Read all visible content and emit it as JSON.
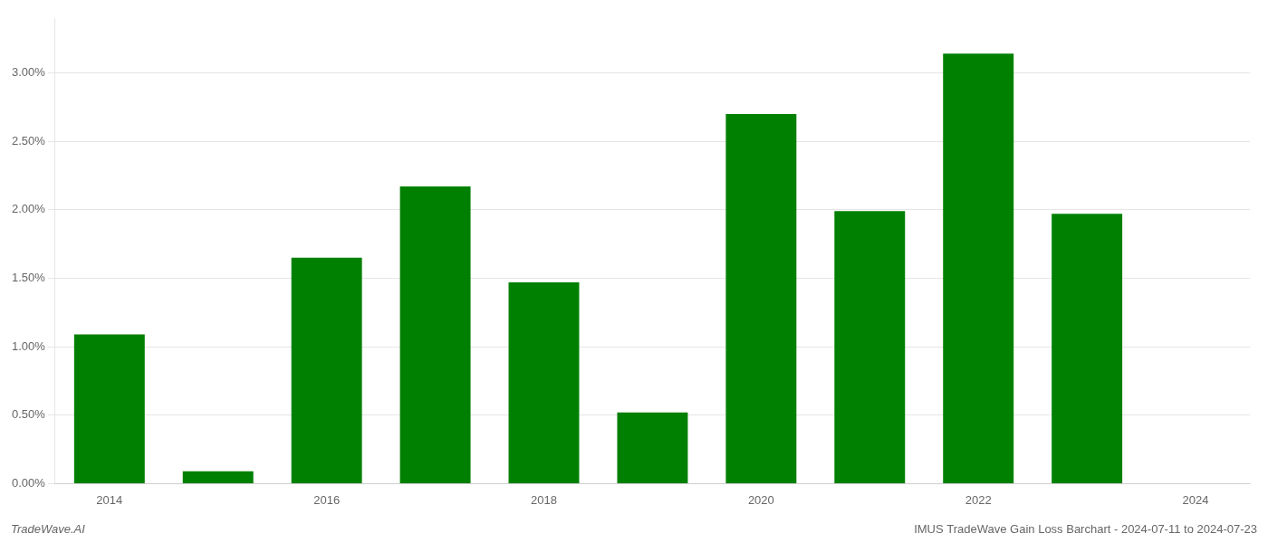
{
  "chart_data": {
    "type": "bar",
    "categories": [
      "2014",
      null,
      "2016",
      null,
      "2018",
      null,
      "2020",
      null,
      "2022",
      null,
      "2024"
    ],
    "values": [
      0.0109,
      0.0009,
      0.0165,
      0.0217,
      0.0147,
      0.0052,
      0.027,
      0.0199,
      0.0314,
      0.0197,
      null
    ],
    "color": "#008000",
    "ylim": [
      0,
      0.034
    ],
    "yticks": [
      {
        "value": 0.0,
        "label": "0.00%"
      },
      {
        "value": 0.005,
        "label": "0.50%"
      },
      {
        "value": 0.01,
        "label": "1.00%"
      },
      {
        "value": 0.015,
        "label": "1.50%"
      },
      {
        "value": 0.02,
        "label": "2.00%"
      },
      {
        "value": 0.025,
        "label": "2.50%"
      },
      {
        "value": 0.03,
        "label": "3.00%"
      }
    ],
    "grid": true,
    "annotations": [
      "TradeWave.AI",
      "IMUS TradeWave Gain Loss Barchart - 2024-07-11 to 2024-07-23"
    ]
  }
}
